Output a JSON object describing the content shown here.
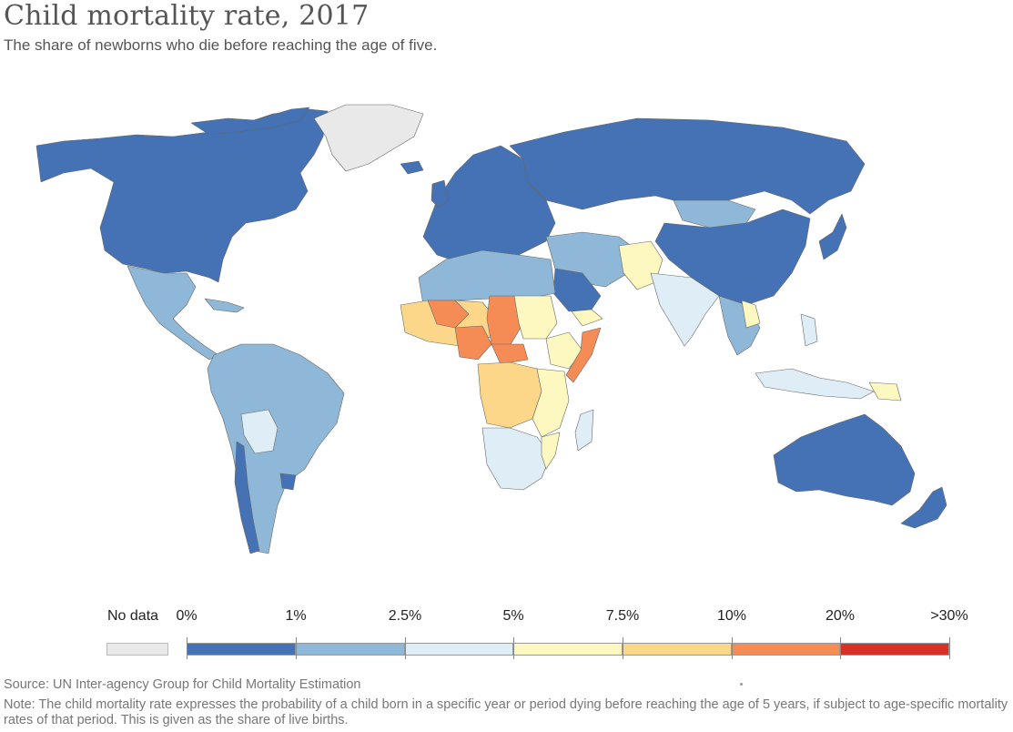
{
  "title": "Child mortality rate, 2017",
  "subtitle": "The share of newborns who die before reaching the age of five.",
  "legend": {
    "nodata_label": "No data",
    "nodata_color": "#e9e9e9",
    "breaks": [
      "0%",
      "1%",
      "2.5%",
      "5%",
      "7.5%",
      "10%",
      "20%",
      ">30%"
    ],
    "colors": [
      "#4472b5",
      "#8fb8d8",
      "#dfeef6",
      "#fdf8bf",
      "#fcd78a",
      "#f58c55",
      "#d73027"
    ]
  },
  "source": "Source: UN Inter-agency Group for Child Mortality Estimation",
  "note": "Note: The child mortality rate expresses the probability of a child born in a specific year or period dying before reaching the age of 5 years, if subject to age-specific mortality rates of that period. This is given as the share of live births."
}
